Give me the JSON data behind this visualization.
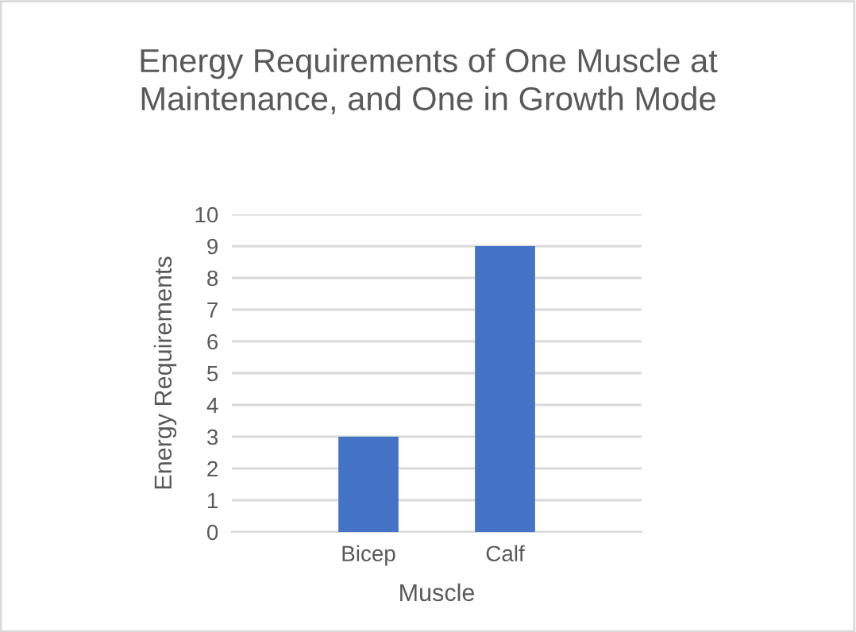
{
  "chart_data": {
    "type": "bar",
    "title": "Energy Requirements of One Muscle at Maintenance, and One in Growth Mode",
    "xlabel": "Muscle",
    "ylabel": "Energy Requirements",
    "categories": [
      "Bicep",
      "Calf"
    ],
    "series": [
      {
        "color": "#4472c4",
        "values": [
          3,
          9
        ]
      }
    ],
    "ylim": [
      0,
      10
    ],
    "yticks": [
      0,
      1,
      2,
      3,
      4,
      5,
      6,
      7,
      8,
      9,
      10
    ],
    "grid": "y"
  }
}
